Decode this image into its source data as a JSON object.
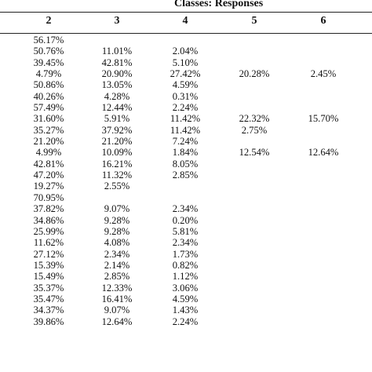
{
  "table": {
    "title": "Classes: Responses",
    "headers": [
      "2",
      "3",
      "4",
      "5",
      "6"
    ],
    "rows": [
      [
        "56.17%",
        "",
        "",
        "",
        ""
      ],
      [
        "50.76%",
        "11.01%",
        "2.04%",
        "",
        ""
      ],
      [
        "39.45%",
        "42.81%",
        "5.10%",
        "",
        ""
      ],
      [
        "4.79%",
        "20.90%",
        "27.42%",
        "20.28%",
        "2.45%"
      ],
      [
        "50.86%",
        "13.05%",
        "4.59%",
        "",
        ""
      ],
      [
        "40.26%",
        "4.28%",
        "0.31%",
        "",
        ""
      ],
      [
        "57.49%",
        "12.44%",
        "2.24%",
        "",
        ""
      ],
      [
        "31.60%",
        "5.91%",
        "11.42%",
        "22.32%",
        "15.70%"
      ],
      [
        "35.27%",
        "37.92%",
        "11.42%",
        "2.75%",
        ""
      ],
      [
        "21.20%",
        "21.20%",
        "7.24%",
        "",
        ""
      ],
      [
        "4.99%",
        "10.09%",
        "1.84%",
        "12.54%",
        "12.64%"
      ],
      [
        "42.81%",
        "16.21%",
        "8.05%",
        "",
        ""
      ],
      [
        "47.20%",
        "11.32%",
        "2.85%",
        "",
        ""
      ],
      [
        "19.27%",
        "2.55%",
        "",
        "",
        ""
      ],
      [
        "70.95%",
        "",
        "",
        "",
        ""
      ],
      [
        "37.82%",
        "9.07%",
        "2.34%",
        "",
        ""
      ],
      [
        "34.86%",
        "9.28%",
        "0.20%",
        "",
        ""
      ],
      [
        "25.99%",
        "9.28%",
        "5.81%",
        "",
        ""
      ],
      [
        "11.62%",
        "4.08%",
        "2.34%",
        "",
        ""
      ],
      [
        "27.12%",
        "2.34%",
        "1.73%",
        "",
        ""
      ],
      [
        "15.39%",
        "2.14%",
        "0.82%",
        "",
        ""
      ],
      [
        "15.49%",
        "2.85%",
        "1.12%",
        "",
        ""
      ],
      [
        "35.37%",
        "12.33%",
        "3.06%",
        "",
        ""
      ],
      [
        "35.47%",
        "16.41%",
        "4.59%",
        "",
        ""
      ],
      [
        "34.37%",
        "9.07%",
        "1.43%",
        "",
        ""
      ],
      [
        "39.86%",
        "12.64%",
        "2.24%",
        "",
        ""
      ]
    ]
  }
}
